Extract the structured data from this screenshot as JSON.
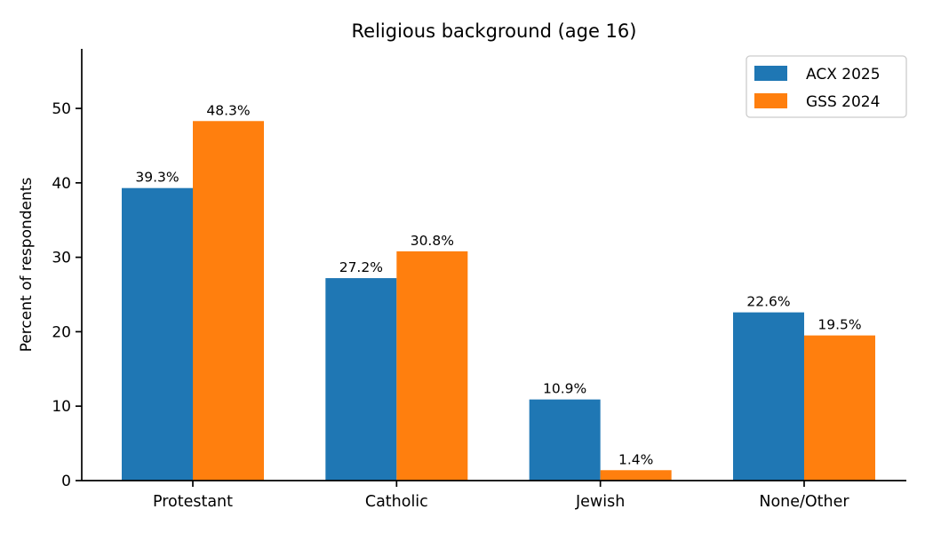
{
  "figure": {
    "background": "#ffffff",
    "axis_color": "#000000"
  },
  "chart_data": {
    "type": "bar",
    "title": "Religious background (age 16)",
    "xlabel": "",
    "ylabel": "Percent of respondents",
    "categories": [
      "Protestant",
      "Catholic",
      "Jewish",
      "None/Other"
    ],
    "series": [
      {
        "name": "ACX 2025",
        "color": "#1f77b4",
        "values": [
          39.3,
          27.2,
          10.9,
          22.6
        ],
        "labels": [
          "39.3%",
          "27.2%",
          "10.9%",
          "22.6%"
        ]
      },
      {
        "name": "GSS 2024",
        "color": "#ff7f0e",
        "values": [
          48.3,
          30.8,
          1.4,
          19.5
        ],
        "labels": [
          "48.3%",
          "30.8%",
          "1.4%",
          "19.5%"
        ]
      }
    ],
    "yticks": [
      0,
      10,
      20,
      30,
      40,
      50
    ],
    "ylim": [
      0,
      58
    ],
    "grid": false,
    "legend_position": "upper right"
  }
}
